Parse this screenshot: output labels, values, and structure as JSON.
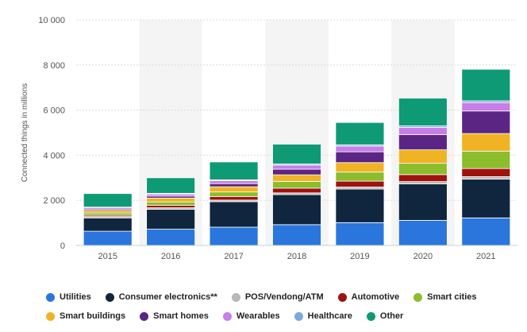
{
  "chart_data": {
    "type": "bar",
    "stacked": true,
    "title": "",
    "xlabel": "",
    "ylabel": "Connected things in millions",
    "ylim": [
      0,
      10000
    ],
    "yticks": [
      0,
      2000,
      4000,
      6000,
      8000,
      10000
    ],
    "ytick_labels": [
      "0",
      "2 000",
      "4 000",
      "6 000",
      "8 000",
      "10 000"
    ],
    "grid": true,
    "legend_position": "bottom",
    "alternating_column_shading": true,
    "categories": [
      "2015",
      "2016",
      "2017",
      "2018",
      "2019",
      "2020",
      "2021"
    ],
    "series": [
      {
        "name": "Utilities",
        "color": "#2a76dd",
        "values": [
          630,
          720,
          810,
          920,
          1010,
          1110,
          1220
        ]
      },
      {
        "name": "Consumer electronics**",
        "color": "#10263f",
        "values": [
          590,
          880,
          1130,
          1330,
          1490,
          1620,
          1720
        ]
      },
      {
        "name": "POS/Vendong/ATM",
        "color": "#b7b7b7",
        "values": [
          60,
          70,
          70,
          80,
          90,
          100,
          110
        ]
      },
      {
        "name": "Automotive",
        "color": "#a0120f",
        "values": [
          60,
          110,
          160,
          210,
          260,
          310,
          360
        ]
      },
      {
        "name": "Smart cities",
        "color": "#8bbd2c",
        "values": [
          100,
          150,
          200,
          300,
          400,
          500,
          770
        ]
      },
      {
        "name": "Smart buildings",
        "color": "#f0b323",
        "values": [
          110,
          170,
          230,
          290,
          420,
          600,
          780
        ]
      },
      {
        "name": "Smart homes",
        "color": "#5b2583",
        "values": [
          60,
          90,
          140,
          250,
          480,
          670,
          1000
        ]
      },
      {
        "name": "Wearables",
        "color": "#c77ee6",
        "values": [
          70,
          90,
          130,
          180,
          250,
          320,
          370
        ]
      },
      {
        "name": "Healthcare",
        "color": "#7ba7dc",
        "values": [
          20,
          30,
          40,
          50,
          60,
          70,
          80
        ]
      },
      {
        "name": "Other",
        "color": "#0f9a76",
        "values": [
          600,
          690,
          790,
          880,
          990,
          1230,
          1400
        ]
      }
    ]
  }
}
